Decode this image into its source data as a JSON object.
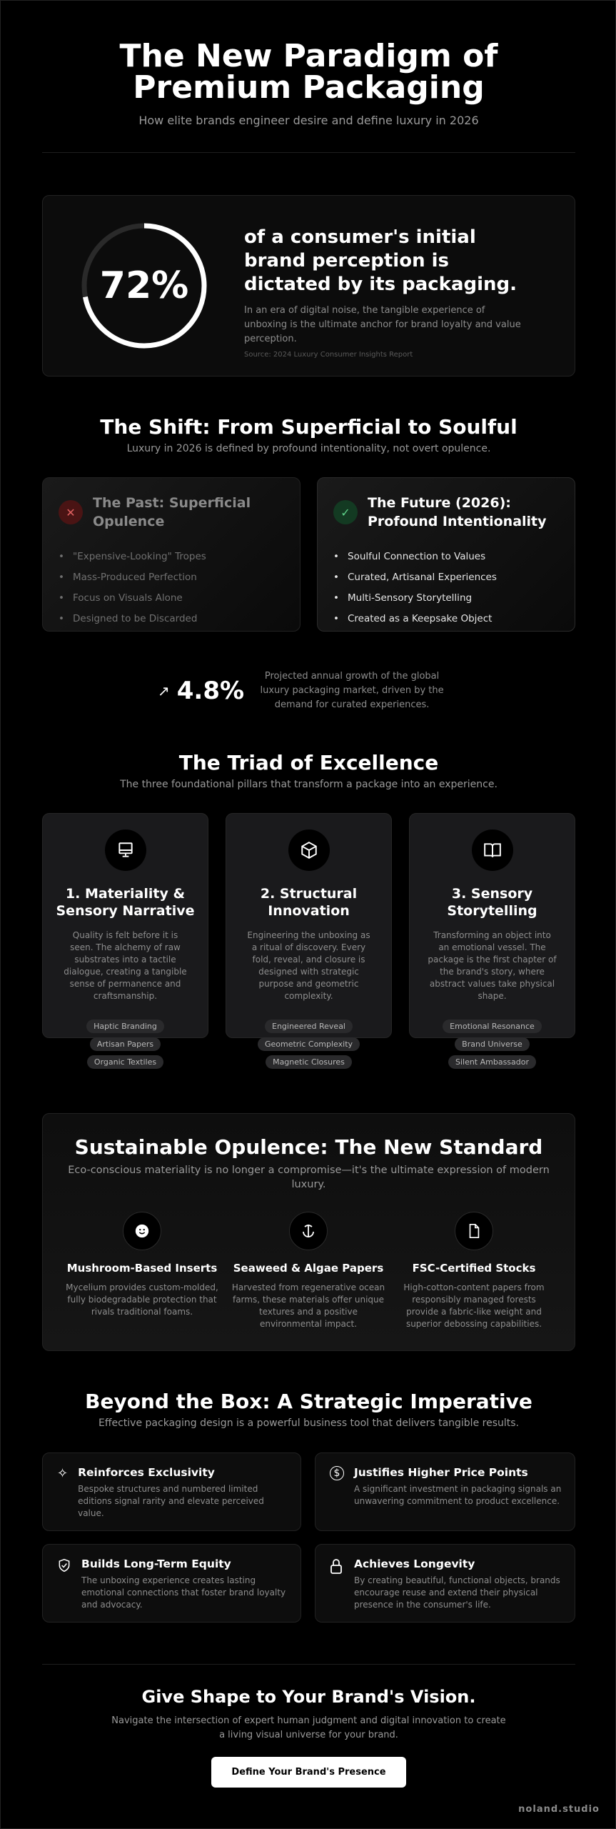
{
  "header": {
    "title": "The New Paradigm of Premium Packaging",
    "subtitle": "How elite brands engineer desire and define luxury in 2026"
  },
  "stat": {
    "value": "72%",
    "percent": 72,
    "headline": "of a consumer's initial brand perception is dictated by its packaging.",
    "body": "In an era of digital noise, the tangible experience of unboxing is the ultimate anchor for brand loyalty and value perception.",
    "source": "Source: 2024 Luxury Consumer Insights Report"
  },
  "shift": {
    "title": "The Shift: From Superficial to Soulful",
    "subtitle": "Luxury in 2026 is defined by profound intentionality, not overt opulence.",
    "past": {
      "icon": "x-icon",
      "title": "The Past: Superficial Opulence",
      "items": [
        "\"Expensive-Looking\" Tropes",
        "Mass-Produced Perfection",
        "Focus on Visuals Alone",
        "Designed to be Discarded"
      ]
    },
    "future": {
      "icon": "check-icon",
      "title": "The Future (2026): Profound Intentionality",
      "items": [
        "Soulful Connection to Values",
        "Curated, Artisanal Experiences",
        "Multi-Sensory Storytelling",
        "Created as a Keepsake Object"
      ]
    }
  },
  "growth": {
    "value": "4.8%",
    "text": "Projected annual growth of the global luxury packaging market, driven by the demand for curated experiences."
  },
  "triad": {
    "title": "The Triad of Excellence",
    "subtitle": "The three foundational pillars that transform a package into an experience.",
    "cards": [
      {
        "icon": "monitor-icon",
        "title": "1. Materiality & Sensory Narrative",
        "desc": "Quality is felt before it is seen. The alchemy of raw substrates into a tactile dialogue, creating a tangible sense of permanence and craftsmanship.",
        "tags": [
          "Haptic Branding",
          "Artisan Papers",
          "Organic Textiles"
        ]
      },
      {
        "icon": "cube-icon",
        "title": "2. Structural Innovation",
        "desc": "Engineering the unboxing as a ritual of discovery. Every fold, reveal, and closure is designed with strategic purpose and geometric complexity.",
        "tags": [
          "Engineered Reveal",
          "Geometric Complexity",
          "Magnetic Closures"
        ]
      },
      {
        "icon": "book-icon",
        "title": "3. Sensory Storytelling",
        "desc": "Transforming an object into an emotional vessel. The package is the first chapter of the brand's story, where abstract values take physical shape.",
        "tags": [
          "Emotional Resonance",
          "Brand Universe",
          "Silent Ambassador"
        ]
      }
    ]
  },
  "sustainable": {
    "title": "Sustainable Opulence: The New Standard",
    "subtitle": "Eco-conscious materiality is no longer a compromise—it's the ultimate expression of modern luxury.",
    "items": [
      {
        "icon": "smiley-icon",
        "title": "Mushroom-Based Inserts",
        "desc": "Mycelium provides custom-molded, fully biodegradable protection that rivals traditional foams."
      },
      {
        "icon": "anchor-icon",
        "title": "Seaweed & Algae Papers",
        "desc": "Harvested from regenerative ocean farms, these materials offer unique textures and a positive environmental impact."
      },
      {
        "icon": "file-icon",
        "title": "FSC-Certified Stocks",
        "desc": "High-cotton-content papers from responsibly managed forests provide a fabric-like weight and superior debossing capabilities."
      }
    ]
  },
  "beyond": {
    "title": "Beyond the Box: A Strategic Imperative",
    "subtitle": "Effective packaging design is a powerful business tool that delivers tangible results.",
    "items": [
      {
        "icon": "sparkles-icon",
        "title": "Reinforces Exclusivity",
        "desc": "Bespoke structures and numbered limited editions signal rarity and elevate perceived value."
      },
      {
        "icon": "dollar-circle-icon",
        "title": "Justifies Higher Price Points",
        "desc": "A significant investment in packaging signals an unwavering commitment to product excellence."
      },
      {
        "icon": "shield-check-icon",
        "title": "Builds Long-Term Equity",
        "desc": "The unboxing experience creates lasting emotional connections that foster brand loyalty and advocacy."
      },
      {
        "icon": "lock-icon",
        "title": "Achieves Longevity",
        "desc": "By creating beautiful, functional objects, brands encourage reuse and extend their physical presence in the consumer's life."
      }
    ]
  },
  "cta": {
    "title": "Give Shape to Your Brand's Vision.",
    "subtitle": "Navigate the intersection of expert human judgment and digital innovation to create a living visual universe for your brand.",
    "button": "Define Your Brand's Presence"
  },
  "footer": {
    "brand": "noland.studio"
  },
  "colors": {
    "background": "#000000",
    "past_badge": "#4a1414",
    "future_badge": "#133a22",
    "card": "#1a1a1c"
  }
}
